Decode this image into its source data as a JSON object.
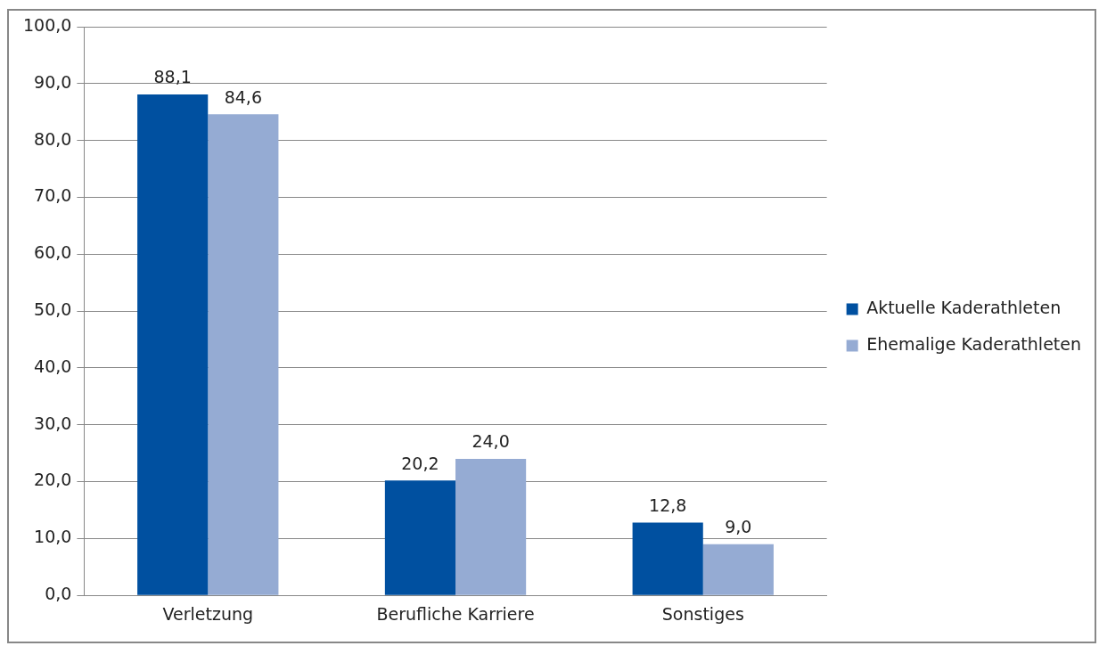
{
  "chart_data": {
    "type": "bar",
    "categories": [
      "Verletzung",
      "Berufliche Karriere",
      "Sonstiges"
    ],
    "series": [
      {
        "name": "Aktuelle Kaderathleten",
        "color": "#0050a0",
        "values": [
          88.1,
          20.2,
          12.8
        ],
        "value_labels": [
          "88,1",
          "20,2",
          "12,8"
        ]
      },
      {
        "name": "Ehemalige Kaderathleten",
        "color": "#95abd3",
        "values": [
          84.6,
          24.0,
          9.0
        ],
        "value_labels": [
          "84,6",
          "24,0",
          "9,0"
        ]
      }
    ],
    "ylim": [
      0,
      100
    ],
    "yticks": [
      {
        "value": 0,
        "label": "0,0"
      },
      {
        "value": 10,
        "label": "10,0"
      },
      {
        "value": 20,
        "label": "20,0"
      },
      {
        "value": 30,
        "label": "30,0"
      },
      {
        "value": 40,
        "label": "40,0"
      },
      {
        "value": 50,
        "label": "50,0"
      },
      {
        "value": 60,
        "label": "60,0"
      },
      {
        "value": 70,
        "label": "70,0"
      },
      {
        "value": 80,
        "label": "80,0"
      },
      {
        "value": 90,
        "label": "90,0"
      },
      {
        "value": 100,
        "label": "100,0"
      }
    ],
    "grid": "y",
    "legend": "right"
  }
}
